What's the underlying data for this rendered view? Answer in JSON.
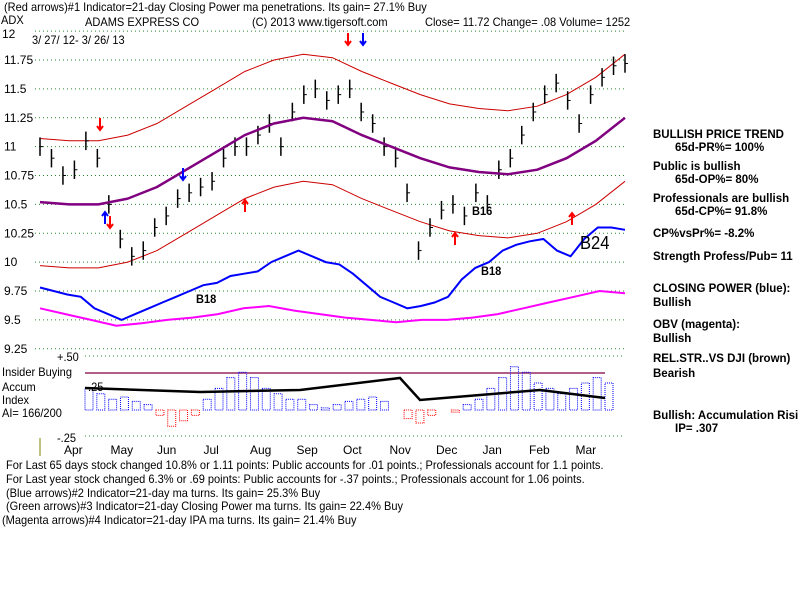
{
  "header": {
    "line1": "(Red arrows)#1 Indicator=21-day Closing Power ma penetrations. Its gain= 27.1% Buy",
    "ticker": "ADX",
    "company": "ADAMS EXPRESS CO",
    "copyright": "(C) 2013 www.tigersoft.com",
    "quote": "Close=  11.72  Change= .08 Volume= 1252",
    "date_range": "3/ 27/ 12- 3/ 26/ 13"
  },
  "right_panel": {
    "trend": "BULLISH PRICE TREND",
    "pr": "65d-PR%= 100%",
    "public": "Public is bullish",
    "op": "65d-OP%= 80%",
    "pros": "Professionals are bullish",
    "cp": "65d-CP%= 91.8%",
    "cpvspr": "CP%vsPr%= -8.2%",
    "strength": "Strength Profess/Pub= 11",
    "closing_power": "CLOSING POWER (blue):",
    "cp_state": "Bullish",
    "obv": "OBV (magenta):",
    "obv_state": "Bullish",
    "relstr": "REL.STR..VS DJI (brown)",
    "relstr_state": "Bearish",
    "accum": "Bullish: Accumulation Risi",
    "ip": "IP=  .307"
  },
  "accum_panel": {
    "plus": "+.50",
    "minus": "-.25",
    "zero": ".25",
    "insider": "Insider Buying",
    "accum": "Accum",
    "index": "Index",
    "ai": "AI= 166/200"
  },
  "annotations": {
    "b18a": "B18",
    "b18b": "B18",
    "b16": "B16",
    "b24": "B24"
  },
  "footer": [
    "For Last 65 days stock changed  10.8% or  1.11 points:  Public accounts for  .01 points.;  Professionals account for  1.1 points.",
    "For Last year stock changed  6.3% or  .69 points:  Public accounts for -.37 points.;  Professionals account for  1.06 points.",
    "(Blue arrows)#2 Indicator=21-day ma turns. Its gain= 25.3% Buy",
    "(Green arrows)#3 Indicator=21-day Closing Power ma turns. Its gain= 22.4% Buy",
    "(Magenta arrows)#4 Indicator=21-day IPA ma turns. Its gain= 21.4% Buy"
  ],
  "chart_data": {
    "type": "line",
    "title": "ADAMS EXPRESS CO",
    "ylim": [
      9.25,
      12
    ],
    "y_ticks": [
      "12",
      "11.75",
      "11.5",
      "11.25",
      "11",
      "10.75",
      "10.5",
      "10.25",
      "10",
      "9.75",
      "9.5",
      "9.25"
    ],
    "x_ticks": [
      "Apr",
      "May",
      "Jun",
      "Jul",
      "Aug",
      "Sep",
      "Oct",
      "Nov",
      "Dec",
      "Jan",
      "Feb",
      "Mar"
    ],
    "series": [
      {
        "name": "Price",
        "color": "#000000",
        "values": [
          11.0,
          10.9,
          10.75,
          10.8,
          11.05,
          10.9,
          10.5,
          10.2,
          10.05,
          10.1,
          10.3,
          10.4,
          10.55,
          10.6,
          10.65,
          10.7,
          10.9,
          11.0,
          11.0,
          11.1,
          11.2,
          11.0,
          11.3,
          11.45,
          11.5,
          11.4,
          11.45,
          11.5,
          11.3,
          11.2,
          11.0,
          10.9,
          10.6,
          10.1,
          10.3,
          10.45,
          10.5,
          10.4,
          10.6,
          10.5,
          10.8,
          10.9,
          11.1,
          11.3,
          11.45,
          11.55,
          11.4,
          11.2,
          11.45,
          11.6,
          11.7,
          11.72
        ]
      },
      {
        "name": "Closing Power",
        "color": "#0000ff",
        "values": [
          9.78,
          9.75,
          9.72,
          9.7,
          9.6,
          9.55,
          9.5,
          9.55,
          9.6,
          9.65,
          9.7,
          9.75,
          9.8,
          9.82,
          9.88,
          9.9,
          9.92,
          10.0,
          10.05,
          10.1,
          10.05,
          10.0,
          9.98,
          9.9,
          9.8,
          9.7,
          9.65,
          9.6,
          9.62,
          9.65,
          9.7,
          9.85,
          9.95,
          10.0,
          10.1,
          10.15,
          10.18,
          10.2,
          10.1,
          10.05,
          10.2,
          10.3,
          10.3,
          10.28
        ]
      },
      {
        "name": "OBV",
        "color": "#ff00ff",
        "values": [
          9.6,
          9.55,
          9.5,
          9.45,
          9.47,
          9.5,
          9.52,
          9.55,
          9.6,
          9.62,
          9.58,
          9.55,
          9.52,
          9.5,
          9.48,
          9.5,
          9.5,
          9.52,
          9.55,
          9.6,
          9.65,
          9.7,
          9.75,
          9.73
        ]
      },
      {
        "name": "21-day MA",
        "color": "#800080",
        "values": [
          10.52,
          10.5,
          10.5,
          10.55,
          10.65,
          10.8,
          10.95,
          11.1,
          11.2,
          11.25,
          11.22,
          11.1,
          11.0,
          10.9,
          10.82,
          10.78,
          10.76,
          10.8,
          10.9,
          11.05,
          11.25
        ]
      }
    ],
    "accumulation_index": [
      0.2,
      0.15,
      0.1,
      0.12,
      0.08,
      0.05,
      -0.05,
      -0.15,
      -0.1,
      -0.05,
      0.1,
      0.2,
      0.3,
      0.35,
      0.3,
      0.2,
      0.15,
      0.1,
      0.1,
      0.05,
      0.02,
      0.05,
      0.08,
      0.1,
      0.12,
      0.08,
      0.0,
      -0.08,
      -0.12,
      -0.05,
      0.0,
      -0.02,
      0.05,
      0.1,
      0.2,
      0.3,
      0.4,
      0.35,
      0.25,
      0.2,
      0.15,
      0.2,
      0.25,
      0.3,
      0.25
    ]
  }
}
